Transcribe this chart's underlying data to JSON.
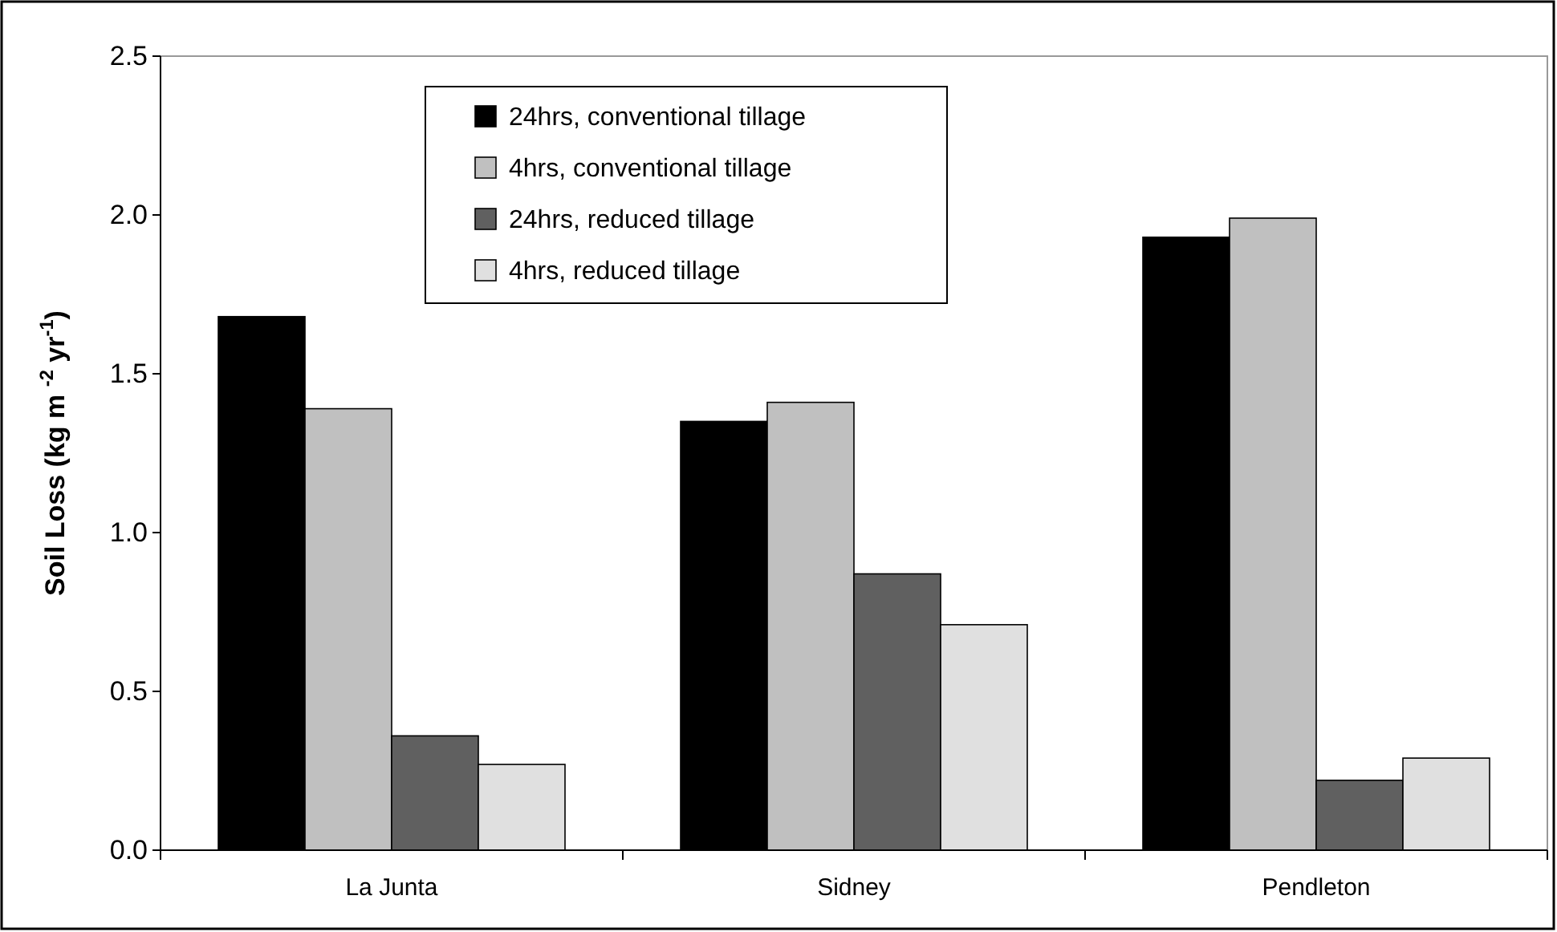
{
  "chart_data": {
    "type": "bar",
    "ylabel": "Soil Loss (kg m $^{-2}$ yr$^{-1}$)",
    "categories": [
      "La Junta",
      "Sidney",
      "Pendleton"
    ],
    "series": [
      {
        "name": "24hrs, conventional tillage",
        "color": "#000000",
        "values": [
          1.68,
          1.35,
          1.93
        ]
      },
      {
        "name": "4hrs, conventional tillage",
        "color": "#c0c0c0",
        "values": [
          1.39,
          1.41,
          1.99
        ]
      },
      {
        "name": "24hrs, reduced tillage",
        "color": "#606060",
        "values": [
          0.36,
          0.87,
          0.22
        ]
      },
      {
        "name": "4hrs, reduced tillage",
        "color": "#e0e0e0",
        "values": [
          0.27,
          0.71,
          0.29
        ]
      }
    ],
    "ylim": [
      0,
      2.5
    ],
    "yticks": [
      {
        "value": 0,
        "label": "0.0"
      },
      {
        "value": 0.5,
        "label": "0.5"
      },
      {
        "value": 1,
        "label": "1.0"
      },
      {
        "value": 1.5,
        "label": "1.5"
      },
      {
        "value": 2,
        "label": "2.0"
      },
      {
        "value": 2.5,
        "label": "2.5"
      }
    ],
    "legend": "top left",
    "grid": false
  }
}
